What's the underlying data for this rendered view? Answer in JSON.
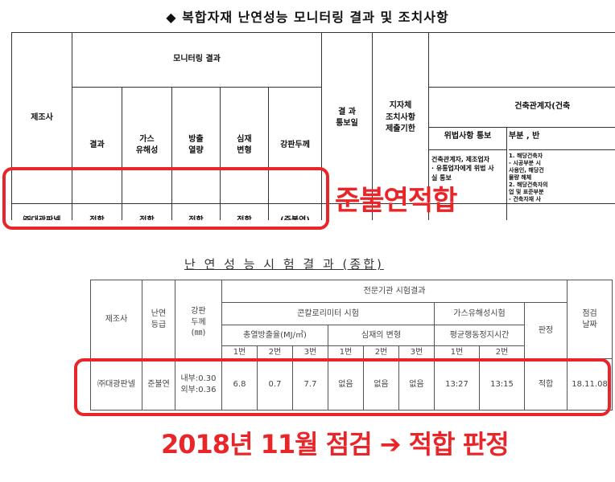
{
  "top": {
    "title": "◆ 복합자재 난연성능 모니터링 결과 및 조치사항",
    "monitoring_header": "모니터링 결과",
    "manufacturer_header": "제조사",
    "result_col": "결과",
    "gas_col": "가스\n유해성",
    "combust_col": "방출\n열량",
    "deform_col": "심재\n변형",
    "thickness_col": "강판두께",
    "notify_col": "결 과\n통보일",
    "deadline_col": "지자체\n조치사항\n제출기한",
    "partial_header": "건축관계자(건축",
    "violation_notice": "위법사항 통보",
    "partial_col2": "부분 , 반",
    "notice_desc": "건축관계자, 제조업자\n· 유통업자에게 위법 사\n실 통보",
    "fine_text": "1. 해당건축자\n- 시공부분 시\n사용인, 해당건\n물량 해체\n2. 해당건축자의\n업 및 표준부분\n- 건축자재 사",
    "row": {
      "manufacturer": "㈜대광판넬",
      "result": "적합",
      "gas": "적합",
      "heat": "적합",
      "deform": "적합",
      "thickness": "(준불연)"
    },
    "stamp": "준불연적합"
  },
  "bottom": {
    "title": "난 연 성 능 시 험 결 과 (종합)",
    "manufacturer_header": "제조사",
    "grade_header": "난연\n등급",
    "thickness_header": "강판\n두께\n(㎜)",
    "expert_header": "전문기관 시험결과",
    "cone_header": "콘칼로리미터 시험",
    "gas_header": "가스유해성시험",
    "judge_header": "판정",
    "date_header": "점검\n날짜",
    "total_heat_header": "총열방출율(MJ/㎡)",
    "core_header": "심재의 변형",
    "avg_time_header": "평균행동정지시간",
    "run_labels": [
      "1번",
      "2번",
      "3번",
      "1번",
      "2번",
      "3번",
      "1번",
      "2번"
    ],
    "row": {
      "manufacturer": "㈜대광판넬",
      "grade": "준불연",
      "thickness": "내부:0.30\n외부:0.36",
      "heat": [
        "6.8",
        "0.7",
        "7.7"
      ],
      "core": [
        "없음",
        "없음",
        "없음"
      ],
      "gas": [
        "13:27",
        "13:15"
      ],
      "judge": "적합",
      "date": "18.11.08"
    },
    "stamp": "2018년 11월 점검 ➔ 적합 판정"
  }
}
